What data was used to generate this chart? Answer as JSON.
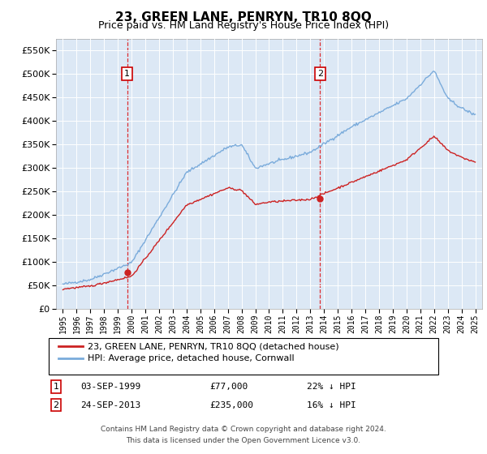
{
  "title": "23, GREEN LANE, PENRYN, TR10 8QQ",
  "subtitle": "Price paid vs. HM Land Registry's House Price Index (HPI)",
  "red_label": "23, GREEN LANE, PENRYN, TR10 8QQ (detached house)",
  "blue_label": "HPI: Average price, detached house, Cornwall",
  "annotation1_date": "03-SEP-1999",
  "annotation1_price": "£77,000",
  "annotation1_hpi": "22% ↓ HPI",
  "annotation2_date": "24-SEP-2013",
  "annotation2_price": "£235,000",
  "annotation2_hpi": "16% ↓ HPI",
  "sale1_x": 1999.67,
  "sale1_y": 77000,
  "sale2_x": 2013.72,
  "sale2_y": 235000,
  "ylim": [
    0,
    575000
  ],
  "xlim": [
    1994.5,
    2025.5
  ],
  "footnote1": "Contains HM Land Registry data © Crown copyright and database right 2024.",
  "footnote2": "This data is licensed under the Open Government Licence v3.0.",
  "background_color": "#dce8f5",
  "title_fontsize": 11,
  "subtitle_fontsize": 9
}
